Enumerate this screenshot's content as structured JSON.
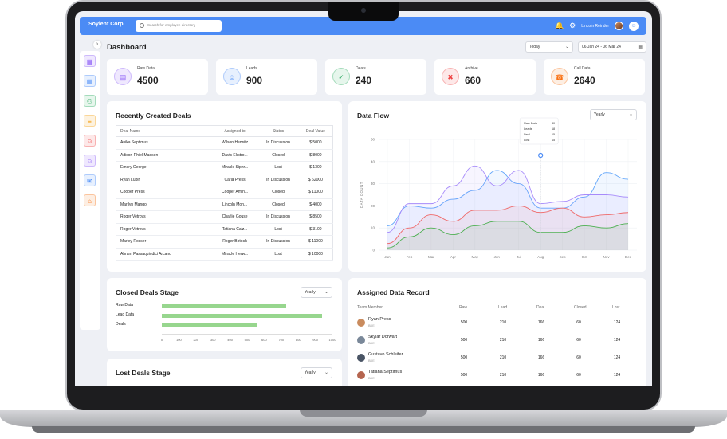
{
  "topbar": {
    "brand": "Soylent Corp",
    "search_placeholder": "Search for employee directory",
    "user_name": "Lincoln Reinder"
  },
  "sidebar": {
    "items": [
      {
        "icon": "grid-icon",
        "color": "#8b5cf6",
        "bg": "#efe8fe"
      },
      {
        "icon": "document-icon",
        "color": "#3b82f6",
        "bg": "#e7f0fe"
      },
      {
        "icon": "users-icon",
        "color": "#22a45a",
        "bg": "#e6f6ec"
      },
      {
        "icon": "note-icon",
        "color": "#f59e0b",
        "bg": "#fdf2df"
      },
      {
        "icon": "contact-icon",
        "color": "#ef4444",
        "bg": "#fde8e8"
      },
      {
        "icon": "person-icon",
        "color": "#8b5cf6",
        "bg": "#efe8fe"
      },
      {
        "icon": "mail-icon",
        "color": "#3b82f6",
        "bg": "#e7f0fe"
      },
      {
        "icon": "store-icon",
        "color": "#f97316",
        "bg": "#fdeee2"
      }
    ]
  },
  "header": {
    "title": "Dashboard",
    "period_select": "Today",
    "date_range": "06 Jan 24 - 06 Mar 24"
  },
  "kpis": [
    {
      "label": "Raw Data",
      "value": "4500",
      "icon": "file-icon",
      "color": "#8b5cf6",
      "bg": "#efe8fe"
    },
    {
      "label": "Leads",
      "value": "900",
      "icon": "person-icon",
      "color": "#3b82f6",
      "bg": "#e7f0fe"
    },
    {
      "label": "Deals",
      "value": "240",
      "icon": "clipboard-check-icon",
      "color": "#22a45a",
      "bg": "#e6f6ec"
    },
    {
      "label": "Archive",
      "value": "660",
      "icon": "archive-icon",
      "color": "#ef4444",
      "bg": "#fde8e8"
    },
    {
      "label": "Call Data",
      "value": "2640",
      "icon": "phone-icon",
      "color": "#f97316",
      "bg": "#fdeee2"
    }
  ],
  "deals_table": {
    "title": "Recently Created Deals",
    "columns": [
      "Deal Name",
      "Assigned to",
      "Status",
      "Deal Value"
    ],
    "rows": [
      [
        "Anika Septimus",
        "Wilson Herwitz",
        "In Discussion",
        "$ 5000"
      ],
      [
        "Adison Rhiel Madsen",
        "Davis Ekstro...",
        "Closed",
        "$ 8000"
      ],
      [
        "Emery George",
        "Miracle Siphr...",
        "Lost",
        "$ 1300"
      ],
      [
        "Ryan Lubin",
        "Carla Press",
        "In Discussion",
        "$ 62000"
      ],
      [
        "Cooper Press",
        "Cooper Amin...",
        "Closed",
        "$ 11000"
      ],
      [
        "Marilyn Mango",
        "Lincoln Mon...",
        "Closed",
        "$ 4000"
      ],
      [
        "Roger Vetrovs",
        "Charlie Gouse",
        "In Discussion",
        "$ 8500"
      ],
      [
        "Roger Vetrovs",
        "Tatiana Calz...",
        "Lost",
        "$ 3100"
      ],
      [
        "Marley Rosser",
        "Roger Botosh",
        "In Discussion",
        "$ 11000"
      ],
      [
        "Abram Passaquindici Arcand",
        "Miracle Herw...",
        "Lost",
        "$ 10000"
      ]
    ]
  },
  "data_flow": {
    "title": "Data Flow",
    "period_select": "Yearly",
    "tooltip": {
      "rows": [
        {
          "label": "Raw Data",
          "value": "30"
        },
        {
          "label": "Leads",
          "value": "18"
        },
        {
          "label": "Deal",
          "value": "15"
        },
        {
          "label": "Lost",
          "value": "15"
        }
      ]
    }
  },
  "chart_data": [
    {
      "type": "line",
      "title": "Data Flow",
      "ylabel": "DATA COUNT",
      "xlabel": "",
      "ylim": [
        0,
        50
      ],
      "yticks": [
        0,
        10,
        20,
        30,
        40,
        50
      ],
      "categories": [
        "Jan",
        "Feb",
        "Mar",
        "Apr",
        "May",
        "Jun",
        "Jul",
        "Aug",
        "Sep",
        "Oct",
        "Nov",
        "Dec"
      ],
      "grid": true,
      "series": [
        {
          "color": "#60a5fa",
          "values": [
            11,
            20,
            19,
            23,
            27,
            36,
            30,
            19,
            19,
            24,
            35,
            32
          ]
        },
        {
          "color": "#a78bfa",
          "values": [
            8,
            21,
            21,
            29,
            38,
            29,
            36,
            21,
            22,
            25,
            25,
            24
          ]
        },
        {
          "color": "#ef6b6b",
          "values": [
            3,
            10,
            16,
            13,
            18,
            18,
            20,
            17,
            19,
            15,
            16,
            17
          ]
        },
        {
          "color": "#4caf50",
          "values": [
            1,
            6,
            10,
            7,
            11,
            13,
            13,
            8,
            8,
            11,
            10,
            12
          ]
        }
      ]
    },
    {
      "type": "bar",
      "orientation": "horizontal",
      "title": "Closed Deals Stage",
      "categories": [
        "Raw Data",
        "Lead Data",
        "Deals"
      ],
      "values": [
        730,
        940,
        560
      ],
      "xlim": [
        0,
        1000
      ],
      "xticks": [
        0,
        100,
        200,
        300,
        400,
        500,
        600,
        700,
        800,
        900,
        1000
      ],
      "color": "#97d68e"
    }
  ],
  "closed_deals": {
    "title": "Closed Deals Stage",
    "period_select": "Yearly"
  },
  "lost_deals": {
    "title": "Lost Deals Stage",
    "period_select": "Yearly"
  },
  "assigned": {
    "title": "Assigned Data Record",
    "columns": [
      "Team Member",
      "Raw",
      "Lead",
      "Deal",
      "Closed",
      "Lost"
    ],
    "rows": [
      {
        "name": "Ryan Press",
        "role": "BDE",
        "raw": "500",
        "lead": "210",
        "deal": "166",
        "closed": "60",
        "lost": "124",
        "avatar": "#c98b5e"
      },
      {
        "name": "Skylar Dorwart",
        "role": "BDE",
        "raw": "500",
        "lead": "210",
        "deal": "166",
        "closed": "60",
        "lost": "124",
        "avatar": "#7a8899"
      },
      {
        "name": "Gustavo Schleifer",
        "role": "BDE",
        "raw": "500",
        "lead": "210",
        "deal": "166",
        "closed": "60",
        "lost": "124",
        "avatar": "#4a5565"
      },
      {
        "name": "Tatiana Septimus",
        "role": "BDE",
        "raw": "500",
        "lead": "210",
        "deal": "166",
        "closed": "60",
        "lost": "124",
        "avatar": "#b5654f"
      }
    ]
  }
}
